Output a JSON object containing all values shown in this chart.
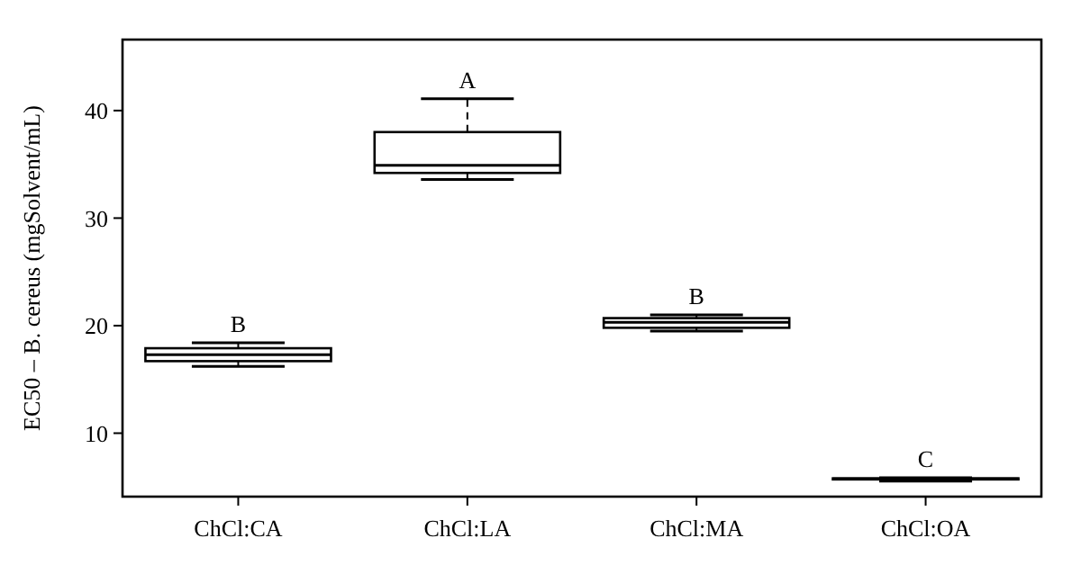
{
  "chart_data": {
    "type": "box",
    "ylabel": "EC50 – B. cereus (mgSolvent/mL)",
    "categories": [
      "ChCl:CA",
      "ChCl:LA",
      "ChCl:MA",
      "ChCl:OA"
    ],
    "boxes": [
      {
        "low": 16.2,
        "q1": 16.7,
        "median": 17.3,
        "q3": 17.9,
        "high": 18.4
      },
      {
        "low": 33.6,
        "q1": 34.2,
        "median": 34.9,
        "q3": 38.0,
        "high": 41.1
      },
      {
        "low": 19.5,
        "q1": 19.8,
        "median": 20.3,
        "q3": 20.7,
        "high": 21.0
      },
      {
        "low": 5.55,
        "q1": 5.7,
        "median": 5.75,
        "q3": 5.8,
        "high": 5.85
      }
    ],
    "ylim": [
      4.1,
      46.6
    ],
    "yticks": [
      10,
      20,
      30,
      40
    ],
    "grid": false,
    "annotations": [
      {
        "text": "B",
        "x": "ChCl:CA",
        "y": 18.4
      },
      {
        "text": "A",
        "x": "ChCl:LA",
        "y": 41.1
      },
      {
        "text": "B",
        "x": "ChCl:MA",
        "y": 21.0
      },
      {
        "text": "C",
        "x": "ChCl:OA",
        "y": 5.85
      }
    ]
  }
}
